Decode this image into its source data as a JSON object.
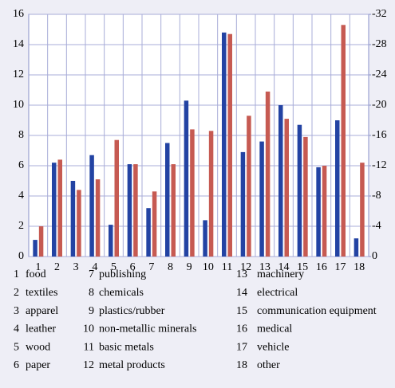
{
  "chart_data": {
    "type": "bar",
    "categories": [
      "1",
      "2",
      "3",
      "4",
      "5",
      "6",
      "7",
      "8",
      "9",
      "10",
      "11",
      "12",
      "13",
      "14",
      "15",
      "16",
      "17",
      "18"
    ],
    "series": [
      {
        "color": "#2343a3",
        "values": [
          1.1,
          6.2,
          5.0,
          6.7,
          2.1,
          6.1,
          3.2,
          7.5,
          10.3,
          2.4,
          14.8,
          6.9,
          7.6,
          10.0,
          8.7,
          5.9,
          9.0,
          1.2
        ]
      },
      {
        "color": "#c65a52",
        "axis": "y2",
        "values": [
          -4.0,
          -12.8,
          -8.8,
          -10.2,
          -15.4,
          -12.2,
          -8.6,
          -12.2,
          -16.8,
          -16.6,
          -29.4,
          -18.6,
          -21.8,
          -18.2,
          -15.8,
          -12.0,
          -30.6,
          -12.4
        ]
      }
    ],
    "ylim": [
      0,
      16
    ],
    "yticks": [
      0,
      2,
      4,
      6,
      8,
      10,
      12,
      14,
      16
    ],
    "y2lim": [
      0,
      -32
    ],
    "y2ticks": [
      0,
      -4,
      -8,
      -12,
      -16,
      -20,
      -24,
      -28,
      -32
    ],
    "grid": true,
    "category_key": [
      {
        "number": "1",
        "label": "food"
      },
      {
        "number": "2",
        "label": "textiles"
      },
      {
        "number": "3",
        "label": "apparel"
      },
      {
        "number": "4",
        "label": "leather"
      },
      {
        "number": "5",
        "label": "wood"
      },
      {
        "number": "6",
        "label": "paper"
      },
      {
        "number": "7",
        "label": "publishing"
      },
      {
        "number": "8",
        "label": "chemicals"
      },
      {
        "number": "9",
        "label": "plastics/rubber"
      },
      {
        "number": "10",
        "label": "non-metallic minerals"
      },
      {
        "number": "11",
        "label": "basic metals"
      },
      {
        "number": "12",
        "label": "metal products"
      },
      {
        "number": "13",
        "label": "machinery"
      },
      {
        "number": "14",
        "label": "electrical"
      },
      {
        "number": "15",
        "label": "communication equipment"
      },
      {
        "number": "16",
        "label": "medical"
      },
      {
        "number": "17",
        "label": "vehicle"
      },
      {
        "number": "18",
        "label": "other"
      }
    ]
  }
}
